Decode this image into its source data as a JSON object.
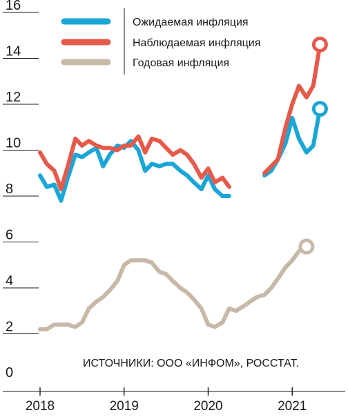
{
  "chart_data": {
    "type": "line",
    "ylim": [
      0,
      16
    ],
    "y_ticks": [
      "16",
      "14",
      "12",
      "10",
      "8",
      "6",
      "4",
      "2",
      "0"
    ],
    "x_ticks": [
      "2018",
      "2019",
      "2020",
      "2021"
    ],
    "xlim": [
      2018.0,
      2021.45
    ],
    "note": "ИСТОЧНИКИ: ООО «ИНФОМ», РОССТАТ.",
    "series": [
      {
        "name": "Ожидаемая инфляция",
        "color": "#1aa6d6",
        "points": [
          [
            [
              2018.0,
              8.9
            ],
            [
              2018.08,
              8.4
            ],
            [
              2018.17,
              8.5
            ],
            [
              2018.25,
              7.8
            ],
            [
              2018.33,
              8.8
            ],
            [
              2018.42,
              9.8
            ],
            [
              2018.5,
              9.7
            ],
            [
              2018.58,
              9.9
            ],
            [
              2018.67,
              10.1
            ],
            [
              2018.75,
              9.3
            ],
            [
              2018.83,
              9.8
            ],
            [
              2018.92,
              10.2
            ],
            [
              2019.0,
              10.1
            ],
            [
              2019.08,
              10.4
            ],
            [
              2019.17,
              10.0
            ],
            [
              2019.25,
              9.1
            ],
            [
              2019.33,
              9.4
            ],
            [
              2019.42,
              9.3
            ],
            [
              2019.5,
              9.4
            ],
            [
              2019.58,
              9.4
            ],
            [
              2019.67,
              9.1
            ],
            [
              2019.75,
              8.9
            ],
            [
              2019.83,
              8.6
            ],
            [
              2019.92,
              8.3
            ],
            [
              2020.0,
              8.9
            ],
            [
              2020.08,
              8.3
            ],
            [
              2020.17,
              8.0
            ],
            [
              2020.25,
              8.0
            ]
          ],
          [
            [
              2020.67,
              8.9
            ],
            [
              2020.75,
              9.1
            ],
            [
              2020.83,
              9.6
            ],
            [
              2020.92,
              10.3
            ],
            [
              2021.0,
              11.4
            ],
            [
              2021.08,
              10.5
            ],
            [
              2021.17,
              9.9
            ],
            [
              2021.25,
              10.2
            ],
            [
              2021.33,
              11.8
            ]
          ]
        ]
      },
      {
        "name": "Наблюдаемая  инфляция",
        "color": "#e65a4b",
        "points": [
          [
            [
              2018.0,
              9.9
            ],
            [
              2018.08,
              9.4
            ],
            [
              2018.17,
              9.1
            ],
            [
              2018.25,
              8.3
            ],
            [
              2018.33,
              9.3
            ],
            [
              2018.42,
              10.5
            ],
            [
              2018.5,
              10.2
            ],
            [
              2018.58,
              10.4
            ],
            [
              2018.67,
              10.2
            ],
            [
              2018.75,
              10.1
            ],
            [
              2018.83,
              10.1
            ],
            [
              2018.92,
              10.0
            ],
            [
              2019.0,
              10.2
            ],
            [
              2019.08,
              10.2
            ],
            [
              2019.17,
              10.6
            ],
            [
              2019.25,
              9.9
            ],
            [
              2019.33,
              10.5
            ],
            [
              2019.42,
              10.4
            ],
            [
              2019.5,
              10.1
            ],
            [
              2019.58,
              9.8
            ],
            [
              2019.67,
              10.0
            ],
            [
              2019.75,
              9.8
            ],
            [
              2019.83,
              9.4
            ],
            [
              2019.92,
              8.8
            ],
            [
              2020.0,
              9.2
            ],
            [
              2020.08,
              8.6
            ],
            [
              2020.17,
              8.8
            ],
            [
              2020.25,
              8.4
            ]
          ],
          [
            [
              2020.67,
              9.0
            ],
            [
              2020.75,
              9.3
            ],
            [
              2020.83,
              9.6
            ],
            [
              2020.92,
              11.0
            ],
            [
              2021.0,
              12.0
            ],
            [
              2021.08,
              12.8
            ],
            [
              2021.17,
              12.3
            ],
            [
              2021.25,
              12.8
            ],
            [
              2021.33,
              14.6
            ]
          ]
        ]
      },
      {
        "name": "Годовая инфляция",
        "color": "#c7b8a8",
        "points": [
          [
            [
              2018.0,
              2.2
            ],
            [
              2018.08,
              2.2
            ],
            [
              2018.17,
              2.4
            ],
            [
              2018.25,
              2.4
            ],
            [
              2018.33,
              2.4
            ],
            [
              2018.42,
              2.3
            ],
            [
              2018.5,
              2.5
            ],
            [
              2018.58,
              3.1
            ],
            [
              2018.67,
              3.4
            ],
            [
              2018.75,
              3.6
            ],
            [
              2018.83,
              3.9
            ],
            [
              2018.92,
              4.3
            ],
            [
              2019.0,
              5.0
            ],
            [
              2019.08,
              5.2
            ],
            [
              2019.17,
              5.2
            ],
            [
              2019.25,
              5.2
            ],
            [
              2019.33,
              5.1
            ],
            [
              2019.42,
              4.7
            ],
            [
              2019.5,
              4.6
            ],
            [
              2019.58,
              4.3
            ],
            [
              2019.67,
              4.0
            ],
            [
              2019.75,
              3.8
            ],
            [
              2019.83,
              3.5
            ],
            [
              2019.92,
              3.1
            ],
            [
              2020.0,
              2.4
            ],
            [
              2020.08,
              2.3
            ],
            [
              2020.17,
              2.5
            ],
            [
              2020.25,
              3.1
            ],
            [
              2020.33,
              3.0
            ],
            [
              2020.42,
              3.2
            ],
            [
              2020.5,
              3.4
            ],
            [
              2020.58,
              3.6
            ],
            [
              2020.67,
              3.7
            ],
            [
              2020.75,
              4.0
            ],
            [
              2020.83,
              4.4
            ],
            [
              2020.92,
              4.9
            ],
            [
              2021.0,
              5.2
            ],
            [
              2021.08,
              5.6
            ],
            [
              2021.17,
              5.8
            ]
          ]
        ]
      }
    ]
  }
}
